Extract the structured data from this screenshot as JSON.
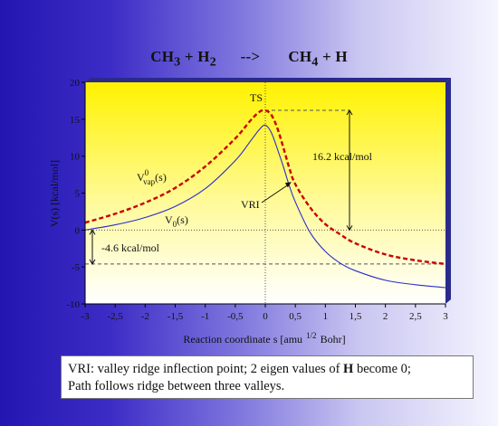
{
  "chart_data": {
    "type": "line",
    "title": {
      "reactants": [
        "CH",
        "3",
        " + H",
        "2"
      ],
      "arrow": "-->",
      "products": [
        "CH",
        "4",
        " + H"
      ]
    },
    "xlabel": "Reaction coordinate s  [amu",
    "xlabel_sup": "1/2",
    "xlabel_unit": "Bohr]",
    "ylabel": "V(s)  [kcal/mol]",
    "xlim": [
      -3,
      3
    ],
    "ylim": [
      -10,
      20
    ],
    "x_ticks": [
      "-3",
      "-2,5",
      "-2",
      "-1,5",
      "-1",
      "-0,5",
      "0",
      "0,5",
      "1",
      "1,5",
      "2",
      "2,5",
      "3"
    ],
    "y_ticks": [
      "-10",
      "-5",
      "0",
      "5",
      "10",
      "15",
      "20"
    ],
    "series": [
      {
        "name": "V0(s)",
        "label": "V",
        "label_sub": "0",
        "label_tail": "(s)",
        "style": "solid",
        "color": "#2b2bd2",
        "x": [
          -3.0,
          -2.5,
          -2.0,
          -1.5,
          -1.0,
          -0.5,
          -0.25,
          -0.1,
          0.0,
          0.1,
          0.2,
          0.3,
          0.4,
          0.5,
          0.75,
          1.0,
          1.25,
          1.5,
          2.0,
          2.5,
          3.0
        ],
        "y": [
          0.0,
          0.7,
          1.7,
          3.2,
          5.6,
          9.4,
          12.0,
          13.6,
          14.2,
          13.2,
          11.0,
          8.6,
          6.0,
          3.8,
          -0.4,
          -2.9,
          -4.5,
          -5.5,
          -6.8,
          -7.4,
          -7.8
        ]
      },
      {
        "name": "Vvap0(s)",
        "label": "V",
        "label_sup": "0",
        "label_sub": "vap",
        "label_tail": "(s)",
        "style": "dashed",
        "color": "#c80000",
        "x": [
          -3.0,
          -2.5,
          -2.0,
          -1.5,
          -1.0,
          -0.5,
          -0.25,
          -0.1,
          0.0,
          0.1,
          0.2,
          0.3,
          0.4,
          0.5,
          0.75,
          1.0,
          1.25,
          1.5,
          2.0,
          2.5,
          3.0
        ],
        "y": [
          1.0,
          2.2,
          3.7,
          5.7,
          8.6,
          12.4,
          14.8,
          16.0,
          16.2,
          15.6,
          13.8,
          11.2,
          8.4,
          6.2,
          3.0,
          0.8,
          -0.6,
          -1.8,
          -3.3,
          -4.1,
          -4.6
        ]
      }
    ],
    "annotations": {
      "ts": "TS",
      "vri": "VRI",
      "barrier": "16.2 kcal/mol",
      "reaction_energy": "-4.6  kcal/mol"
    },
    "reference_lines": {
      "zero": 0,
      "product": -4.6,
      "ts_level": 16.2
    },
    "ts_x": 0.0,
    "vri_point": [
      0.45,
      6.5
    ],
    "background_colors": [
      "#fff200",
      "#ffffff"
    ]
  },
  "note": {
    "line1_a": "VRI: valley ridge inflection point; 2 eigen values of ",
    "line1_b": "H",
    "line1_c": " become 0;",
    "line2": "Path follows ridge between three valleys."
  }
}
